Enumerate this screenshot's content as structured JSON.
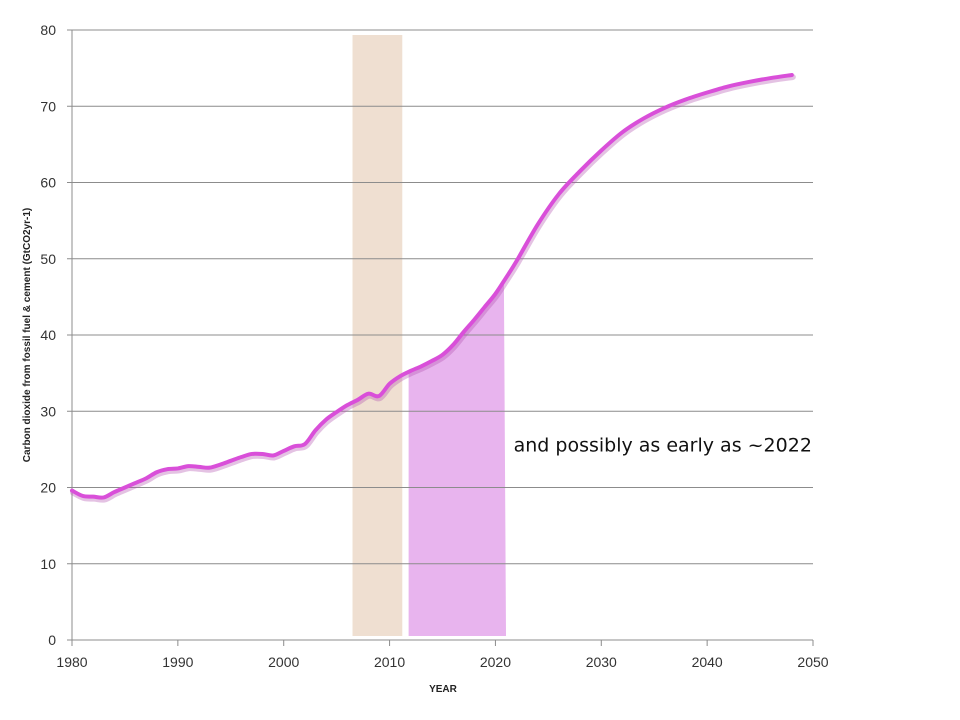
{
  "chart_data": {
    "type": "line",
    "xlabel": "YEAR",
    "ylabel": "Carbon dioxide from fossil fuel & cement (GtCO2yr-1)",
    "xlim": [
      1980,
      2050
    ],
    "ylim": [
      0,
      80
    ],
    "x_ticks": [
      "1980",
      "1990",
      "2000",
      "2010",
      "2020",
      "2030",
      "2040",
      "2050"
    ],
    "y_ticks": [
      "0",
      "10",
      "20",
      "30",
      "40",
      "50",
      "60",
      "70",
      "80"
    ],
    "grid": "horizontal",
    "line_color": "#d94fd9",
    "series": [
      {
        "x": [
          1980,
          1981,
          1982,
          1983,
          1984,
          1985,
          1986,
          1987,
          1988,
          1989,
          1990,
          1991,
          1992,
          1993,
          1994,
          1995,
          1996,
          1997,
          1998,
          1999,
          2000,
          2001,
          2002,
          2003,
          2004,
          2005,
          2006,
          2007,
          2008,
          2009,
          2010,
          2011,
          2012,
          2013,
          2014,
          2015,
          2016,
          2017,
          2018,
          2019,
          2020,
          2021,
          2022,
          2024,
          2026,
          2028,
          2030,
          2032,
          2034,
          2036,
          2038,
          2040,
          2042,
          2044,
          2046,
          2048
        ],
        "y": [
          19.6,
          18.9,
          18.8,
          18.7,
          19.4,
          20.0,
          20.6,
          21.2,
          22.0,
          22.4,
          22.5,
          22.8,
          22.7,
          22.6,
          23.0,
          23.5,
          24.0,
          24.4,
          24.4,
          24.2,
          24.8,
          25.4,
          25.7,
          27.5,
          28.9,
          29.9,
          30.8,
          31.5,
          32.3,
          32.0,
          33.6,
          34.6,
          35.3,
          35.9,
          36.6,
          37.4,
          38.7,
          40.4,
          42.0,
          43.7,
          45.4,
          47.5,
          49.7,
          54.5,
          58.5,
          61.5,
          64.2,
          66.6,
          68.4,
          69.8,
          70.9,
          71.8,
          72.6,
          73.2,
          73.7,
          74.1
        ]
      }
    ],
    "shaded_regions": [
      {
        "x_start": 2006.5,
        "x_end": 2011.2,
        "color": "#efdfd1"
      },
      {
        "x_start": 2011.8,
        "x_end": 2021.0,
        "color": "#e8b4ee",
        "follows_line": true
      }
    ],
    "annotations": [
      {
        "text": "and possibly as early as ~2022",
        "x": 2022,
        "y": 25.5
      }
    ]
  }
}
